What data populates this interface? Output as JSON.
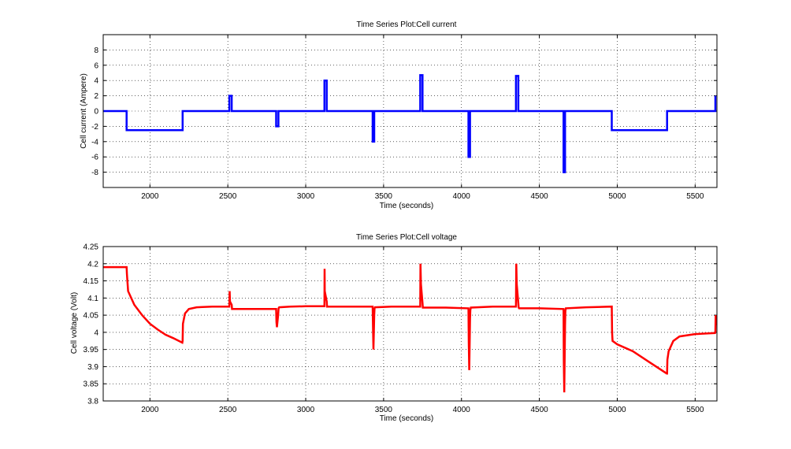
{
  "chart_data": [
    {
      "type": "line",
      "title": "Time Series Plot:Cell current",
      "xlabel": "Time (seconds)",
      "ylabel": "Cell current (Ampere)",
      "xlim": [
        1700,
        5640
      ],
      "ylim": [
        -10,
        10
      ],
      "xticks": [
        2000,
        2500,
        3000,
        3500,
        4000,
        4500,
        5000,
        5500
      ],
      "yticks": [
        -8,
        -6,
        -4,
        -2,
        0,
        2,
        4,
        6,
        8
      ],
      "xtick_labels": [
        "2000",
        "2500",
        "3000",
        "3500",
        "4000",
        "4500",
        "5000",
        "5500"
      ],
      "ytick_labels": [
        "-8",
        "-6",
        "-4",
        "-2",
        "0",
        "2",
        "4",
        "6",
        "8"
      ],
      "grid": true,
      "color": "#0000ff",
      "series": [
        {
          "x": [
            1700,
            1850,
            1850,
            2210,
            2210,
            2510,
            2510,
            2525,
            2525,
            2810,
            2810,
            2825,
            2825,
            3120,
            3120,
            3135,
            3135,
            3430,
            3430,
            3440,
            3440,
            3735,
            3735,
            3750,
            3750,
            4045,
            4045,
            4055,
            4055,
            4350,
            4350,
            4365,
            4365,
            4655,
            4655,
            4665,
            4665,
            4965,
            4965,
            5320,
            5320,
            5630,
            5630
          ],
          "y": [
            0,
            0,
            -2.5,
            -2.5,
            0,
            0,
            2,
            2,
            0,
            0,
            -2,
            -2,
            0,
            0,
            4,
            4,
            0,
            0,
            -4,
            -4,
            0,
            0,
            4.7,
            4.7,
            0,
            0,
            -6,
            -6,
            0,
            0,
            4.6,
            4.6,
            0,
            0,
            -8,
            -8,
            0,
            0,
            -2.5,
            -2.5,
            0,
            0,
            2
          ]
        }
      ]
    },
    {
      "type": "line",
      "title": "Time Series Plot:Cell voltage",
      "xlabel": "Time (seconds)",
      "ylabel": "Cell voltage (Volt)",
      "xlim": [
        1700,
        5640
      ],
      "ylim": [
        3.8,
        4.25
      ],
      "xticks": [
        2000,
        2500,
        3000,
        3500,
        4000,
        4500,
        5000,
        5500
      ],
      "yticks": [
        3.8,
        3.85,
        3.9,
        3.95,
        4.0,
        4.05,
        4.1,
        4.15,
        4.2,
        4.25
      ],
      "xtick_labels": [
        "2000",
        "2500",
        "3000",
        "3500",
        "4000",
        "4500",
        "5000",
        "5500"
      ],
      "ytick_labels": [
        "3.8",
        "3.85",
        "3.9",
        "3.95",
        "4",
        "4.05",
        "4.1",
        "4.15",
        "4.2",
        "4.25"
      ],
      "grid": true,
      "color": "#ff0000",
      "series": [
        {
          "x": [
            1700,
            1850,
            1852,
            1860,
            1900,
            1950,
            2000,
            2050,
            2100,
            2150,
            2208,
            2210,
            2212,
            2225,
            2250,
            2300,
            2400,
            2510,
            2512,
            2514,
            2525,
            2527,
            2530,
            2600,
            2700,
            2810,
            2812,
            2815,
            2823,
            2826,
            2830,
            2900,
            3000,
            3120,
            3121,
            3122,
            3135,
            3137,
            3140,
            3250,
            3430,
            3432,
            3435,
            3440,
            3442,
            3445,
            3550,
            3735,
            3737,
            3740,
            3750,
            3752,
            3755,
            3900,
            4045,
            4047,
            4050,
            4055,
            4057,
            4060,
            4200,
            4350,
            4352,
            4355,
            4365,
            4367,
            4370,
            4500,
            4655,
            4657,
            4660,
            4665,
            4667,
            4670,
            4800,
            4965,
            4967,
            4970,
            5000,
            5100,
            5200,
            5318,
            5320,
            5322,
            5330,
            5360,
            5400,
            5500,
            5628,
            5630,
            5632,
            5635
          ],
          "y": [
            4.19,
            4.19,
            4.17,
            4.12,
            4.08,
            4.05,
            4.025,
            4.008,
            3.993,
            3.983,
            3.97,
            3.975,
            4.025,
            4.055,
            4.068,
            4.073,
            4.075,
            4.075,
            4.12,
            4.09,
            4.08,
            4.068,
            4.068,
            4.068,
            4.068,
            4.068,
            4.03,
            4.015,
            4.05,
            4.07,
            4.073,
            4.075,
            4.076,
            4.076,
            4.185,
            4.12,
            4.09,
            4.075,
            4.075,
            4.075,
            4.075,
            4.02,
            3.95,
            4.05,
            4.07,
            4.073,
            4.075,
            4.075,
            4.2,
            4.14,
            4.085,
            4.072,
            4.072,
            4.072,
            4.07,
            3.97,
            3.89,
            4.04,
            4.065,
            4.072,
            4.075,
            4.075,
            4.2,
            4.14,
            4.085,
            4.072,
            4.07,
            4.07,
            4.068,
            3.92,
            3.825,
            4.02,
            4.062,
            4.07,
            4.073,
            4.075,
            4.0,
            3.975,
            3.965,
            3.945,
            3.915,
            3.88,
            3.88,
            3.92,
            3.945,
            3.975,
            3.988,
            3.995,
            3.998,
            4.0,
            4.05,
            4.02
          ]
        }
      ]
    }
  ]
}
